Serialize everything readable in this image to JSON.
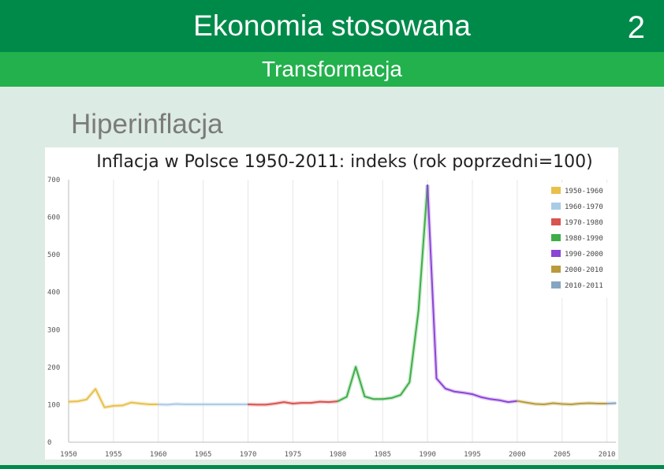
{
  "header": {
    "title": "Ekonomia stosowana",
    "page_number": "2",
    "subtitle": "Transformacja"
  },
  "section": {
    "heading": "Hiperinflacja"
  },
  "colors": {
    "top_bar": "#008a4a",
    "sub_bar": "#23b14d",
    "background": "#dcebe3"
  },
  "chart_data": {
    "type": "line",
    "title": "Inflacja w Polsce 1950-2011: indeks (rok poprzedni=100)",
    "xlabel": "",
    "ylabel": "",
    "xlim": [
      1950,
      2011
    ],
    "ylim": [
      0,
      700
    ],
    "x_ticks": [
      "1950",
      "1955",
      "1960",
      "1965",
      "1970",
      "1975",
      "1980",
      "1985",
      "1990",
      "1995",
      "2000",
      "2005",
      "2010"
    ],
    "y_ticks": [
      "0",
      "100",
      "200",
      "300",
      "400",
      "500",
      "600",
      "700"
    ],
    "grid": "vertical",
    "legend_position": "top-right",
    "series": [
      {
        "name": "1950-1960",
        "color": "#e8c04a",
        "x": [
          1950,
          1951,
          1952,
          1953,
          1954,
          1955,
          1956,
          1957,
          1958,
          1959,
          1960
        ],
        "y": [
          108,
          109,
          114,
          142,
          93,
          97,
          98,
          106,
          103,
          101,
          101
        ]
      },
      {
        "name": "1960-1970",
        "color": "#aacbe6",
        "x": [
          1960,
          1961,
          1962,
          1963,
          1964,
          1965,
          1966,
          1967,
          1968,
          1969,
          1970
        ],
        "y": [
          101,
          100,
          102,
          101,
          101,
          101,
          101,
          101,
          101,
          101,
          101
        ]
      },
      {
        "name": "1970-1980",
        "color": "#d9534f",
        "x": [
          1970,
          1971,
          1972,
          1973,
          1974,
          1975,
          1976,
          1977,
          1978,
          1979,
          1980
        ],
        "y": [
          101,
          100,
          100,
          103,
          107,
          103,
          105,
          105,
          108,
          107,
          109
        ]
      },
      {
        "name": "1980-1990",
        "color": "#3fae49",
        "x": [
          1980,
          1981,
          1982,
          1983,
          1984,
          1985,
          1986,
          1987,
          1988,
          1989,
          1990
        ],
        "y": [
          109,
          121,
          201,
          122,
          115,
          115,
          118,
          126,
          160,
          351,
          686
        ]
      },
      {
        "name": "1990-2000",
        "color": "#8b44d6",
        "x": [
          1990,
          1991,
          1992,
          1993,
          1994,
          1995,
          1996,
          1997,
          1998,
          1999,
          2000
        ],
        "y": [
          686,
          170,
          143,
          135,
          132,
          128,
          120,
          115,
          112,
          107,
          110
        ]
      },
      {
        "name": "2000-2010",
        "color": "#b99a3c",
        "x": [
          2000,
          2001,
          2002,
          2003,
          2004,
          2005,
          2006,
          2007,
          2008,
          2009,
          2010
        ],
        "y": [
          110,
          106,
          102,
          101,
          104,
          102,
          101,
          103,
          104,
          103,
          103
        ]
      },
      {
        "name": "2010-2011",
        "color": "#86a6bf",
        "x": [
          2010,
          2011
        ],
        "y": [
          103,
          104
        ]
      }
    ]
  }
}
